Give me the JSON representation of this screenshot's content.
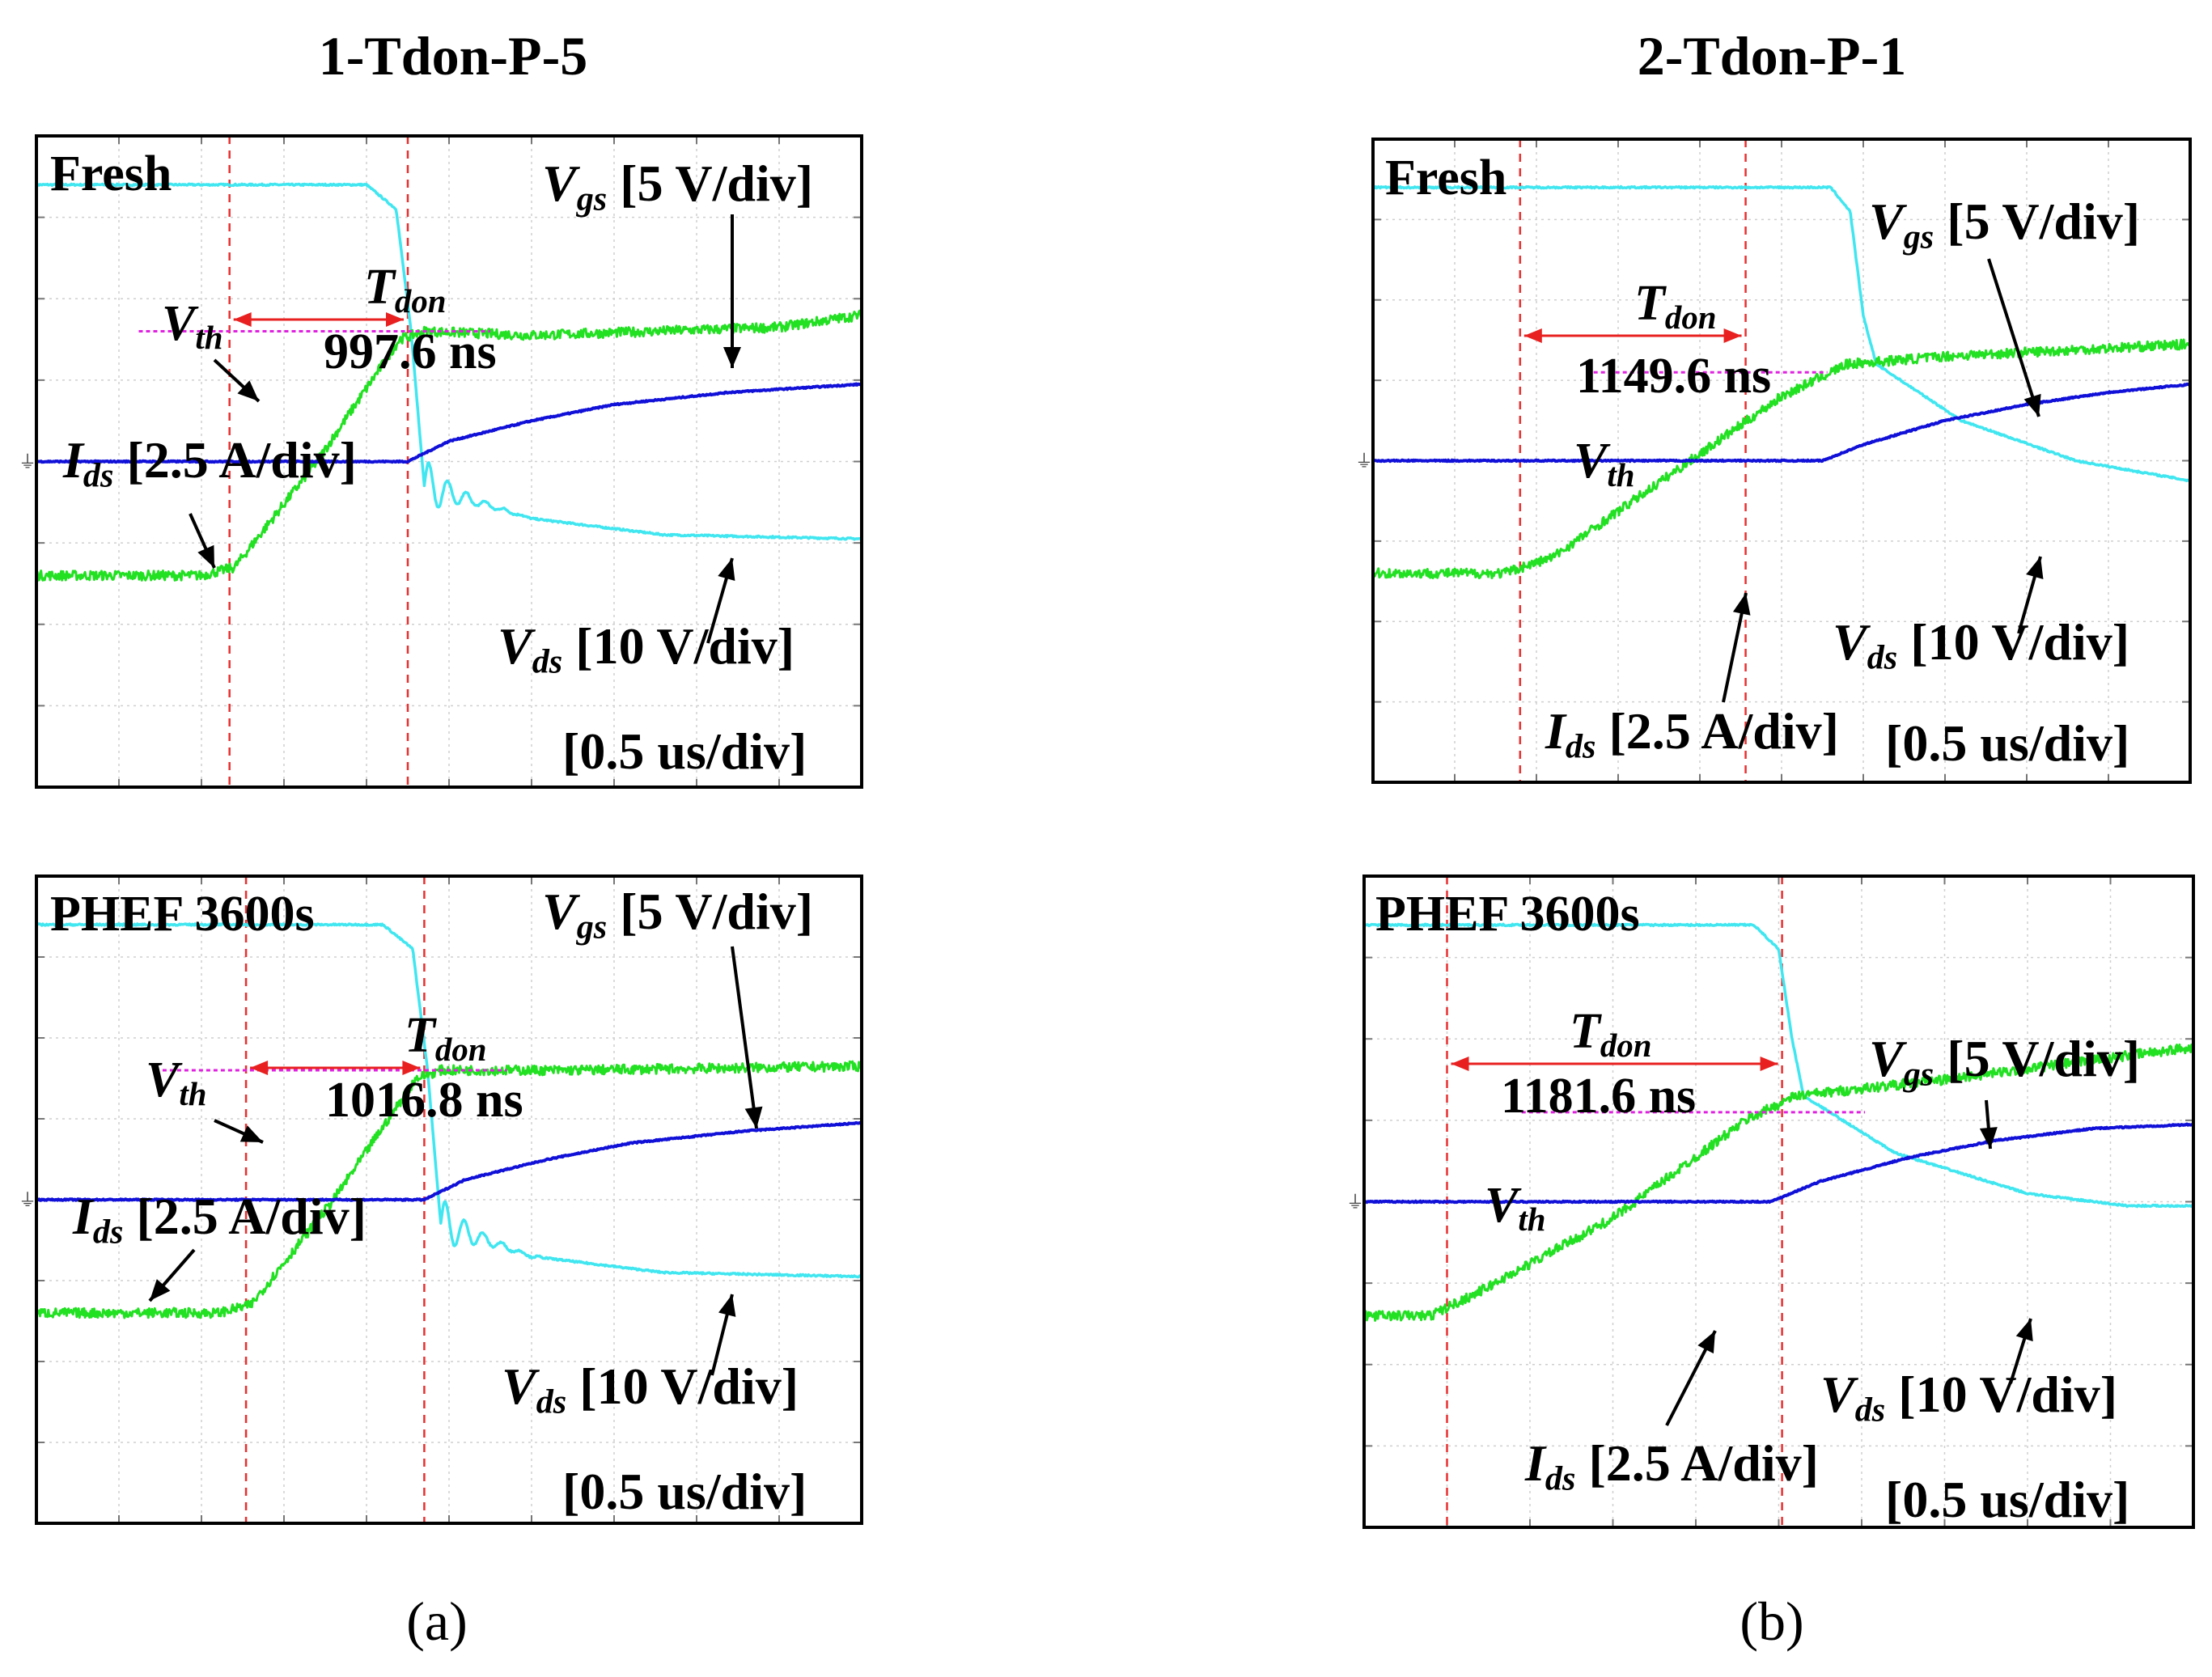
{
  "figure": {
    "col_titles": [
      "1-Tdon-P-5",
      "2-Tdon-P-1"
    ],
    "sub_labels": [
      "(a)",
      "(b)"
    ]
  },
  "colors": {
    "vgs": "#40E6F0",
    "vds": "#22E022",
    "ids": "#1010D8",
    "marker": "#E83030",
    "arrow": "#E82020",
    "vth_line": "#E020E0",
    "grid": "#cfcfcf"
  },
  "labels": {
    "vgs_scale": "[5 V/div]",
    "vds_scale": "[10 V/div]",
    "ids_scale": "[2.5 A/div]",
    "time_scale": "[0.5 us/div]",
    "tdon_sym": "T",
    "tdon_sub": "don",
    "vgs_sym": "V",
    "vgs_sub": "gs",
    "vds_sym": "V",
    "vds_sub": "ds",
    "ids_sym": "I",
    "ids_sub": "ds",
    "vth_sym": "V",
    "vth_sub": "th"
  },
  "chart_data": [
    {
      "type": "line",
      "title": "Fresh",
      "column": "1-Tdon-P-5",
      "tdon_label": "997.6 ns",
      "tdon_ns": 997.6,
      "x_unit": "us",
      "x_range": [
        0,
        5
      ],
      "y_range_div": [
        -4,
        4
      ],
      "t_start_us": 1.17,
      "t_end_us": 2.25,
      "series": [
        {
          "name": "Vgs",
          "points": [
            [
              0,
              3.4
            ],
            [
              2.0,
              3.4
            ],
            [
              2.18,
              3.1
            ],
            [
              2.27,
              1.6
            ],
            [
              2.35,
              -0.3
            ],
            [
              3.0,
              -0.7
            ],
            [
              3.8,
              -0.9
            ],
            [
              5.0,
              -0.95
            ]
          ]
        },
        {
          "name": "Vds",
          "points": [
            [
              0,
              -1.4
            ],
            [
              1.0,
              -1.4
            ],
            [
              1.2,
              -1.3
            ],
            [
              1.7,
              0.0
            ],
            [
              2.2,
              1.5
            ],
            [
              2.35,
              1.6
            ],
            [
              3.0,
              1.55
            ],
            [
              4.5,
              1.65
            ],
            [
              5.0,
              1.8
            ]
          ]
        },
        {
          "name": "Ids",
          "points": [
            [
              0,
              0
            ],
            [
              2.25,
              0
            ],
            [
              2.5,
              0.25
            ],
            [
              3.0,
              0.5
            ],
            [
              3.5,
              0.7
            ],
            [
              4.2,
              0.85
            ],
            [
              5.0,
              0.95
            ]
          ]
        }
      ],
      "vth_div": 1.6
    },
    {
      "type": "line",
      "title": "PHEF 3600s",
      "column": "1-Tdon-P-5",
      "tdon_label": "1016.8 ns",
      "tdon_ns": 1016.8,
      "x_unit": "us",
      "x_range": [
        0,
        5
      ],
      "y_range_div": [
        -4,
        4
      ],
      "t_start_us": 1.27,
      "t_end_us": 2.35,
      "series": [
        {
          "name": "Vgs",
          "points": [
            [
              0,
              3.4
            ],
            [
              2.1,
              3.4
            ],
            [
              2.28,
              3.1
            ],
            [
              2.37,
              1.6
            ],
            [
              2.45,
              -0.3
            ],
            [
              3.0,
              -0.7
            ],
            [
              3.8,
              -0.9
            ],
            [
              5.0,
              -0.95
            ]
          ]
        },
        {
          "name": "Vds",
          "points": [
            [
              0,
              -1.4
            ],
            [
              1.1,
              -1.4
            ],
            [
              1.3,
              -1.3
            ],
            [
              1.8,
              0.0
            ],
            [
              2.3,
              1.5
            ],
            [
              2.45,
              1.6
            ],
            [
              3.2,
              1.6
            ],
            [
              5.0,
              1.65
            ]
          ]
        },
        {
          "name": "Ids",
          "points": [
            [
              0,
              0
            ],
            [
              2.35,
              0
            ],
            [
              2.6,
              0.25
            ],
            [
              3.1,
              0.5
            ],
            [
              3.6,
              0.7
            ],
            [
              4.3,
              0.85
            ],
            [
              5.0,
              0.95
            ]
          ]
        }
      ],
      "vth_div": 1.6
    },
    {
      "type": "line",
      "title": "Fresh",
      "column": "2-Tdon-P-1",
      "tdon_label": "1149.6 ns",
      "tdon_ns": 1149.6,
      "x_unit": "us",
      "x_range": [
        0,
        5
      ],
      "y_range_div": [
        -4,
        4
      ],
      "t_start_us": 0.9,
      "t_end_us": 2.28,
      "series": [
        {
          "name": "Vgs",
          "points": [
            [
              0,
              3.4
            ],
            [
              2.8,
              3.4
            ],
            [
              2.92,
              3.1
            ],
            [
              3.0,
              1.8
            ],
            [
              3.08,
              1.2
            ],
            [
              3.6,
              0.5
            ],
            [
              4.3,
              0.0
            ],
            [
              5.0,
              -0.25
            ]
          ]
        },
        {
          "name": "Vds",
          "points": [
            [
              0,
              -1.4
            ],
            [
              0.8,
              -1.4
            ],
            [
              1.1,
              -1.2
            ],
            [
              1.8,
              -0.2
            ],
            [
              2.5,
              0.8
            ],
            [
              2.9,
              1.2
            ],
            [
              3.5,
              1.3
            ],
            [
              5.0,
              1.45
            ]
          ]
        },
        {
          "name": "Ids",
          "points": [
            [
              0,
              0
            ],
            [
              2.75,
              0
            ],
            [
              3.0,
              0.2
            ],
            [
              3.5,
              0.5
            ],
            [
              4.0,
              0.7
            ],
            [
              4.5,
              0.85
            ],
            [
              5.0,
              0.95
            ]
          ]
        }
      ],
      "vth_div": 1.1
    },
    {
      "type": "line",
      "title": "PHEF 3600s",
      "column": "2-Tdon-P-1",
      "tdon_label": "1181.6 ns",
      "tdon_ns": 1181.6,
      "x_unit": "us",
      "x_range": [
        0,
        5
      ],
      "y_range_div": [
        -4,
        4
      ],
      "t_start_us": 0.5,
      "t_end_us": 2.52,
      "series": [
        {
          "name": "Vgs",
          "points": [
            [
              0,
              3.4
            ],
            [
              2.35,
              3.4
            ],
            [
              2.5,
              3.1
            ],
            [
              2.58,
              2.0
            ],
            [
              2.65,
              1.3
            ],
            [
              3.2,
              0.6
            ],
            [
              4.0,
              0.1
            ],
            [
              4.6,
              -0.05
            ],
            [
              5.0,
              -0.05
            ]
          ]
        },
        {
          "name": "Vds",
          "points": [
            [
              0,
              -1.4
            ],
            [
              0.4,
              -1.4
            ],
            [
              0.7,
              -1.1
            ],
            [
              1.5,
              -0.2
            ],
            [
              2.3,
              1.0
            ],
            [
              2.6,
              1.3
            ],
            [
              3.5,
              1.5
            ],
            [
              5.0,
              1.9
            ]
          ]
        },
        {
          "name": "Ids",
          "points": [
            [
              0,
              0
            ],
            [
              2.45,
              0
            ],
            [
              2.75,
              0.25
            ],
            [
              3.3,
              0.55
            ],
            [
              3.8,
              0.75
            ],
            [
              4.4,
              0.9
            ],
            [
              5.0,
              0.95
            ]
          ]
        }
      ],
      "vth_div": 1.1
    }
  ]
}
